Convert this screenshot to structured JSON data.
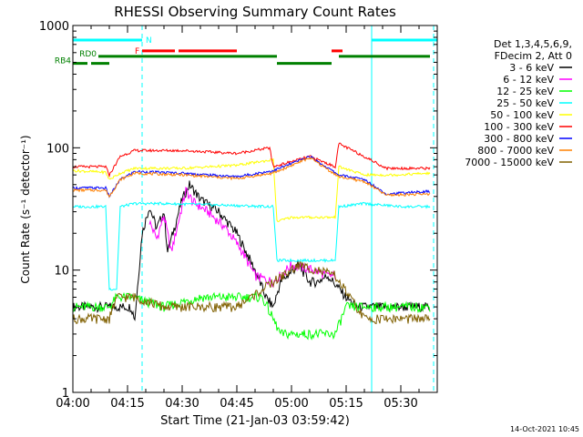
{
  "chart_data": {
    "type": "line",
    "title": "RHESSI Observing Summary Count Rates",
    "ylabel": "Count Rate (s⁻¹ detector⁻¹)",
    "xlabel": "Start Time (21-Jan-03 03:59:42)",
    "footer_timestamp": "14-Oct-2021 10:45",
    "yscale": "log",
    "ylim": [
      1,
      1000
    ],
    "xlim_minutes": [
      0,
      100
    ],
    "y_ticks": [
      {
        "value": 1,
        "label": "1"
      },
      {
        "value": 10,
        "label": "10"
      },
      {
        "value": 100,
        "label": "100"
      },
      {
        "value": 1000,
        "label": "1000"
      }
    ],
    "x_ticks": [
      {
        "minutes": 0,
        "label": "04:00"
      },
      {
        "minutes": 15,
        "label": "04:15"
      },
      {
        "minutes": 30,
        "label": "04:30"
      },
      {
        "minutes": 45,
        "label": "04:45"
      },
      {
        "minutes": 60,
        "label": "05:00"
      },
      {
        "minutes": 75,
        "label": "05:15"
      },
      {
        "minutes": 90,
        "label": "05:30"
      }
    ],
    "legend_header": [
      "Det 1,3,4,5,6,9,",
      "FDecim 2, Att 0"
    ],
    "series": [
      {
        "name": "3 - 6 keV",
        "color": "#000000",
        "points": [
          [
            0,
            5
          ],
          [
            16,
            5
          ],
          [
            17,
            4
          ],
          [
            19,
            20
          ],
          [
            21,
            33
          ],
          [
            23,
            22
          ],
          [
            25,
            30
          ],
          [
            26,
            14
          ],
          [
            28,
            23
          ],
          [
            30,
            38
          ],
          [
            32,
            50
          ],
          [
            35,
            38
          ],
          [
            40,
            30
          ],
          [
            45,
            20
          ],
          [
            50,
            10
          ],
          [
            53,
            6
          ],
          [
            55,
            5
          ],
          [
            57,
            8
          ],
          [
            62,
            11
          ],
          [
            65,
            8
          ],
          [
            67,
            8
          ],
          [
            70,
            9
          ],
          [
            75,
            6
          ],
          [
            78,
            5
          ],
          [
            82,
            5
          ],
          [
            85,
            5
          ],
          [
            98,
            5
          ]
        ]
      },
      {
        "name": "6 - 12 keV",
        "color": "#ff00ff",
        "points": [
          [
            21,
            25
          ],
          [
            23,
            18
          ],
          [
            25,
            28
          ],
          [
            27,
            14
          ],
          [
            29,
            25
          ],
          [
            31,
            45
          ],
          [
            33,
            36
          ],
          [
            37,
            30
          ],
          [
            42,
            22
          ],
          [
            46,
            15
          ],
          [
            50,
            9
          ],
          [
            55,
            8
          ],
          [
            60,
            11
          ],
          [
            66,
            10
          ],
          [
            70,
            9
          ],
          [
            72,
            9
          ]
        ]
      },
      {
        "name": "12 - 25 keV",
        "color": "#00ff00",
        "points": [
          [
            0,
            5
          ],
          [
            10,
            5
          ],
          [
            12,
            6
          ],
          [
            16,
            6
          ],
          [
            25,
            5
          ],
          [
            35,
            6
          ],
          [
            45,
            6
          ],
          [
            52,
            6
          ],
          [
            57,
            3
          ],
          [
            72,
            3
          ],
          [
            75,
            5
          ],
          [
            82,
            5
          ],
          [
            88,
            5
          ],
          [
            98,
            5
          ]
        ]
      },
      {
        "name": "25 - 50 keV",
        "color": "#00ffff",
        "points": [
          [
            0,
            33
          ],
          [
            9,
            33
          ],
          [
            10,
            7
          ],
          [
            12,
            7
          ],
          [
            13,
            33
          ],
          [
            17,
            35
          ],
          [
            25,
            35
          ],
          [
            40,
            34
          ],
          [
            55,
            33
          ],
          [
            56,
            12
          ],
          [
            60,
            12
          ],
          [
            72,
            12
          ],
          [
            73,
            33
          ],
          [
            80,
            35
          ],
          [
            90,
            33
          ],
          [
            98,
            33
          ]
        ]
      },
      {
        "name": "50 - 100 keV",
        "color": "#ffff00",
        "points": [
          [
            0,
            65
          ],
          [
            9,
            63
          ],
          [
            10,
            55
          ],
          [
            13,
            62
          ],
          [
            17,
            68
          ],
          [
            30,
            68
          ],
          [
            45,
            72
          ],
          [
            55,
            80
          ],
          [
            56,
            25
          ],
          [
            60,
            27
          ],
          [
            72,
            27
          ],
          [
            73,
            70
          ],
          [
            80,
            60
          ],
          [
            88,
            60
          ],
          [
            98,
            62
          ]
        ]
      },
      {
        "name": "100 - 300 keV",
        "color": "#ff0000",
        "points": [
          [
            0,
            70
          ],
          [
            9,
            70
          ],
          [
            10,
            60
          ],
          [
            13,
            85
          ],
          [
            17,
            95
          ],
          [
            30,
            95
          ],
          [
            45,
            90
          ],
          [
            54,
            100
          ],
          [
            55,
            70
          ],
          [
            65,
            85
          ],
          [
            72,
            70
          ],
          [
            73,
            108
          ],
          [
            80,
            85
          ],
          [
            86,
            68
          ],
          [
            98,
            68
          ]
        ]
      },
      {
        "name": "300 - 800 keV",
        "color": "#0000ff",
        "points": [
          [
            0,
            47
          ],
          [
            9,
            47
          ],
          [
            10,
            40
          ],
          [
            13,
            55
          ],
          [
            17,
            64
          ],
          [
            30,
            62
          ],
          [
            45,
            58
          ],
          [
            55,
            65
          ],
          [
            65,
            85
          ],
          [
            73,
            60
          ],
          [
            80,
            55
          ],
          [
            86,
            42
          ],
          [
            98,
            44
          ]
        ]
      },
      {
        "name": "800 - 7000 keV",
        "color": "#ff8000",
        "points": [
          [
            0,
            45
          ],
          [
            9,
            45
          ],
          [
            10,
            40
          ],
          [
            13,
            55
          ],
          [
            17,
            62
          ],
          [
            30,
            60
          ],
          [
            45,
            56
          ],
          [
            55,
            62
          ],
          [
            65,
            83
          ],
          [
            73,
            58
          ],
          [
            80,
            53
          ],
          [
            86,
            41
          ],
          [
            98,
            42
          ]
        ]
      },
      {
        "name": "7000 - 15000 keV",
        "color": "#806000",
        "points": [
          [
            0,
            4
          ],
          [
            10,
            4
          ],
          [
            12,
            6
          ],
          [
            17,
            6
          ],
          [
            25,
            5
          ],
          [
            35,
            5
          ],
          [
            45,
            5
          ],
          [
            55,
            8
          ],
          [
            62,
            11
          ],
          [
            67,
            10
          ],
          [
            72,
            9
          ],
          [
            76,
            6
          ],
          [
            80,
            4
          ],
          [
            98,
            4
          ]
        ]
      }
    ],
    "flag_bars": [
      {
        "label": "N",
        "color": "#00ffff",
        "value": 760,
        "segments": [
          [
            0,
            19
          ],
          [
            82,
            100
          ]
        ]
      },
      {
        "label": "F",
        "color": "#ff0000",
        "value": 620,
        "segments": [
          [
            19,
            28
          ],
          [
            29,
            45
          ],
          [
            71,
            74
          ]
        ]
      },
      {
        "label": "RD0",
        "color": "#008000",
        "value": 560,
        "segments": [
          [
            7,
            56
          ],
          [
            73,
            98
          ]
        ]
      },
      {
        "label": "RB4",
        "color": "#008000",
        "value": 490,
        "segments": [
          [
            0,
            4
          ],
          [
            5,
            10
          ],
          [
            56,
            71
          ]
        ]
      }
    ],
    "vertical_markers": [
      {
        "minutes": 19,
        "color": "#00ffff",
        "style": "dashed"
      },
      {
        "minutes": 82,
        "color": "#00ffff",
        "style": "solid"
      },
      {
        "minutes": 99,
        "color": "#00ffff",
        "style": "dashed"
      }
    ]
  }
}
